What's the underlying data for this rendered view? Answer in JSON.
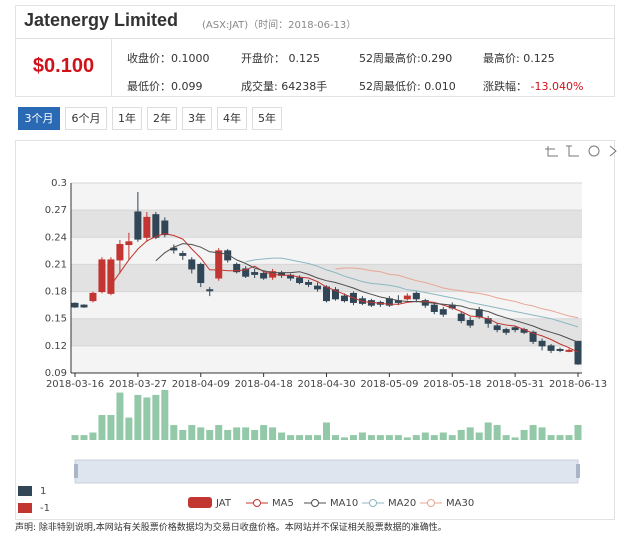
{
  "header": {
    "title": "Jatenergy Limited",
    "subtitle": "(ASX:JAT)（时间：2018-06-13）",
    "price": "$0.100"
  },
  "stats": [
    {
      "label": "收盘价：",
      "value": "0.1000"
    },
    {
      "label": "开盘价： ",
      "value": "0.125"
    },
    {
      "label": "52周最高价:",
      "value": "0.290"
    },
    {
      "label": "最高价: ",
      "value": "0.125"
    },
    {
      "label": "最低价：",
      "value": "0.099"
    },
    {
      "label": "成交量: ",
      "value": "64238手"
    },
    {
      "label": "52周最低价: ",
      "value": "0.010"
    },
    {
      "label": "涨跌幅： ",
      "value": "-13.040%"
    }
  ],
  "tabs": [
    "3个月",
    "6个月",
    "1年",
    "2年",
    "3年",
    "4年",
    "5年"
  ],
  "disclaimer": "声明: 除非特别说明,本网站有关股票价格数据均为交易日收盘价格。本网站并不保证相关股票数据的准确性。",
  "chart_data": {
    "type": "candlestick",
    "categories": [
      "2018-03-16",
      null,
      null,
      null,
      null,
      null,
      null,
      "2018-03-27",
      null,
      null,
      null,
      null,
      null,
      null,
      "2018-04-09",
      null,
      null,
      null,
      null,
      null,
      null,
      "2018-04-18",
      null,
      null,
      null,
      null,
      null,
      null,
      "2018-04-30",
      null,
      null,
      null,
      null,
      null,
      null,
      "2018-05-09",
      null,
      null,
      null,
      null,
      null,
      null,
      "2018-05-18",
      null,
      null,
      null,
      null,
      null,
      null,
      "2018-05-31",
      null,
      null,
      null,
      null,
      null,
      null,
      "2018-06-13"
    ],
    "ylim": [
      0.09,
      0.3
    ],
    "yticks": [
      0.09,
      0.12,
      0.15,
      0.18,
      0.21,
      0.24,
      0.27,
      0.3
    ],
    "grid": true,
    "up_color": "#c23531",
    "down_color": "#314656",
    "candles": {
      "name": "JAT",
      "color": "#c23531",
      "open": [
        0.167,
        0.165,
        0.17,
        0.18,
        0.178,
        0.215,
        0.232,
        0.268,
        0.24,
        0.265,
        0.258,
        0.228,
        0.222,
        0.215,
        0.21,
        0.182,
        0.195,
        0.225,
        0.21,
        0.205,
        0.201,
        0.2,
        0.196,
        0.2,
        0.198,
        0.195,
        0.19,
        0.186,
        0.185,
        0.182,
        0.175,
        0.178,
        0.172,
        0.17,
        0.168,
        0.172,
        0.17,
        0.172,
        0.178,
        0.17,
        0.165,
        0.16,
        0.165,
        0.155,
        0.148,
        0.16,
        0.15,
        0.142,
        0.138,
        0.14,
        0.138,
        0.135,
        0.125,
        0.12,
        0.116,
        0.115,
        0.125
      ],
      "close": [
        0.163,
        0.163,
        0.178,
        0.215,
        0.215,
        0.232,
        0.235,
        0.238,
        0.262,
        0.24,
        0.243,
        0.226,
        0.22,
        0.205,
        0.19,
        0.181,
        0.225,
        0.215,
        0.202,
        0.197,
        0.199,
        0.195,
        0.202,
        0.198,
        0.195,
        0.19,
        0.188,
        0.183,
        0.17,
        0.172,
        0.17,
        0.168,
        0.167,
        0.165,
        0.166,
        0.165,
        0.168,
        0.175,
        0.172,
        0.165,
        0.158,
        0.155,
        0.162,
        0.148,
        0.143,
        0.152,
        0.145,
        0.138,
        0.135,
        0.138,
        0.135,
        0.125,
        0.12,
        0.115,
        0.115,
        0.115,
        0.1
      ],
      "high": [
        0.168,
        0.166,
        0.18,
        0.218,
        0.218,
        0.237,
        0.245,
        0.29,
        0.268,
        0.268,
        0.262,
        0.232,
        0.225,
        0.218,
        0.212,
        0.185,
        0.228,
        0.227,
        0.212,
        0.208,
        0.205,
        0.203,
        0.205,
        0.203,
        0.2,
        0.198,
        0.193,
        0.19,
        0.187,
        0.185,
        0.178,
        0.18,
        0.175,
        0.172,
        0.17,
        0.175,
        0.176,
        0.178,
        0.18,
        0.172,
        0.167,
        0.163,
        0.168,
        0.158,
        0.152,
        0.163,
        0.153,
        0.145,
        0.14,
        0.142,
        0.14,
        0.137,
        0.128,
        0.122,
        0.118,
        0.117,
        0.125
      ],
      "low": [
        0.162,
        0.162,
        0.168,
        0.178,
        0.176,
        0.2,
        0.215,
        0.235,
        0.235,
        0.238,
        0.24,
        0.222,
        0.215,
        0.2,
        0.185,
        0.175,
        0.192,
        0.212,
        0.2,
        0.195,
        0.195,
        0.193,
        0.193,
        0.195,
        0.192,
        0.188,
        0.185,
        0.18,
        0.168,
        0.17,
        0.168,
        0.165,
        0.165,
        0.163,
        0.163,
        0.163,
        0.165,
        0.17,
        0.168,
        0.162,
        0.155,
        0.152,
        0.16,
        0.145,
        0.14,
        0.15,
        0.14,
        0.135,
        0.132,
        0.135,
        0.133,
        0.122,
        0.115,
        0.112,
        0.113,
        0.113,
        0.099
      ]
    },
    "series": [
      {
        "name": "MA5",
        "color": "#c23531",
        "values": [
          null,
          null,
          null,
          null,
          0.187,
          0.201,
          0.215,
          0.227,
          0.236,
          0.241,
          0.244,
          0.242,
          0.238,
          0.227,
          0.217,
          0.204,
          0.204,
          0.203,
          0.203,
          0.204,
          0.208,
          0.202,
          0.199,
          0.198,
          0.198,
          0.196,
          0.195,
          0.191,
          0.185,
          0.181,
          0.177,
          0.173,
          0.169,
          0.168,
          0.167,
          0.166,
          0.166,
          0.168,
          0.169,
          0.169,
          0.168,
          0.165,
          0.162,
          0.158,
          0.153,
          0.152,
          0.15,
          0.145,
          0.143,
          0.142,
          0.138,
          0.134,
          0.131,
          0.127,
          0.122,
          0.118,
          0.113
        ]
      },
      {
        "name": "MA10",
        "color": "#4f4f4f",
        "values": [
          null,
          null,
          null,
          null,
          null,
          null,
          null,
          null,
          null,
          0.214,
          0.223,
          0.229,
          0.233,
          0.232,
          0.229,
          0.224,
          0.223,
          0.221,
          0.215,
          0.211,
          0.206,
          0.203,
          0.201,
          0.201,
          0.201,
          0.202,
          0.199,
          0.195,
          0.192,
          0.19,
          0.187,
          0.184,
          0.18,
          0.177,
          0.174,
          0.172,
          0.17,
          0.169,
          0.169,
          0.168,
          0.167,
          0.166,
          0.165,
          0.164,
          0.161,
          0.16,
          0.158,
          0.154,
          0.151,
          0.148,
          0.145,
          0.142,
          0.138,
          0.135,
          0.132,
          0.128,
          0.124
        ]
      },
      {
        "name": "MA20",
        "color": "#8bb8c2",
        "values": [
          null,
          null,
          null,
          null,
          null,
          null,
          null,
          null,
          null,
          null,
          null,
          null,
          null,
          null,
          null,
          null,
          null,
          null,
          null,
          0.213,
          0.215,
          0.216,
          0.217,
          0.217,
          0.215,
          0.213,
          0.211,
          0.208,
          0.204,
          0.201,
          0.197,
          0.194,
          0.191,
          0.189,
          0.188,
          0.187,
          0.185,
          0.182,
          0.181,
          0.179,
          0.177,
          0.175,
          0.173,
          0.171,
          0.168,
          0.166,
          0.164,
          0.162,
          0.16,
          0.158,
          0.156,
          0.154,
          0.152,
          0.15,
          0.147,
          0.144,
          0.141
        ]
      },
      {
        "name": "MA30",
        "color": "#e9a593",
        "values": [
          null,
          null,
          null,
          null,
          null,
          null,
          null,
          null,
          null,
          null,
          null,
          null,
          null,
          null,
          null,
          null,
          null,
          null,
          null,
          null,
          null,
          null,
          null,
          null,
          null,
          null,
          null,
          null,
          null,
          0.205,
          0.206,
          0.206,
          0.205,
          0.203,
          0.202,
          0.199,
          0.198,
          0.195,
          0.192,
          0.19,
          0.187,
          0.184,
          0.182,
          0.181,
          0.179,
          0.178,
          0.176,
          0.173,
          0.171,
          0.169,
          0.166,
          0.164,
          0.161,
          0.159,
          0.156,
          0.153,
          0.151
        ]
      }
    ],
    "volume": {
      "color": "#93c9a8",
      "values": [
        21000,
        21000,
        32000,
        107000,
        107000,
        203000,
        96000,
        193000,
        182000,
        193000,
        214000,
        64000,
        43000,
        64000,
        54000,
        43000,
        64000,
        43000,
        54000,
        54000,
        43000,
        64000,
        54000,
        32000,
        21000,
        21000,
        21000,
        21000,
        75000,
        21000,
        11000,
        21000,
        32000,
        21000,
        21000,
        21000,
        21000,
        11000,
        21000,
        32000,
        21000,
        32000,
        21000,
        43000,
        54000,
        32000,
        75000,
        64000,
        21000,
        11000,
        43000,
        64000,
        54000,
        21000,
        21000,
        21000,
        64238
      ]
    },
    "visual_map": [
      {
        "value": 1,
        "color": "#314656"
      },
      {
        "value": -1,
        "color": "#c23531"
      }
    ]
  }
}
